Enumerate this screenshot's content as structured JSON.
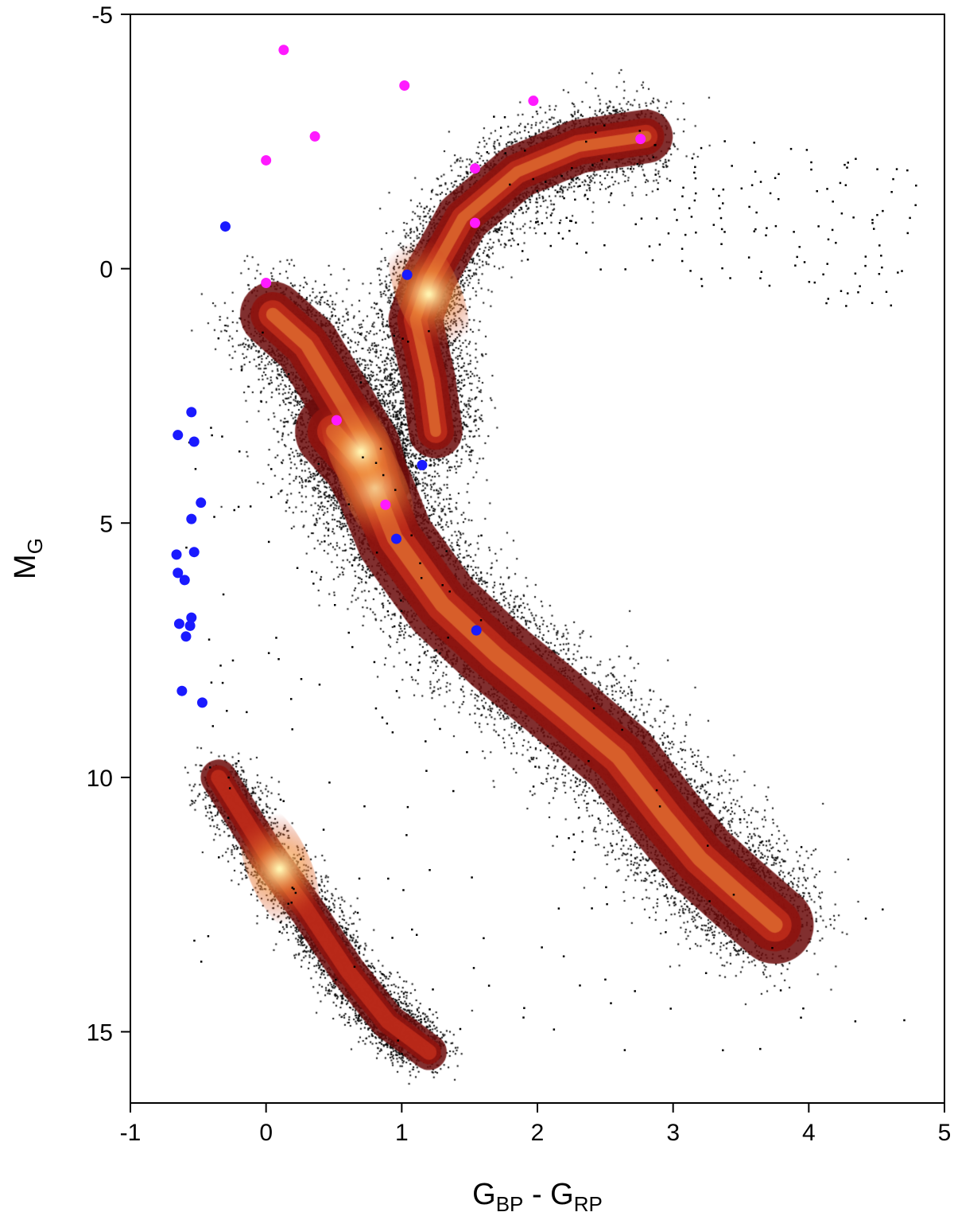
{
  "chart_data": {
    "type": "scatter",
    "title": "",
    "xlabel": {
      "main1": "G",
      "sub1": "BP",
      "mid": " - G",
      "sub2": "RP"
    },
    "ylabel": {
      "main": "M",
      "sub": "G"
    },
    "xlim": [
      -1,
      5
    ],
    "ylim": [
      -5,
      16.4
    ],
    "y_inverted": true,
    "xticks": [
      -1,
      0,
      1,
      2,
      3,
      4,
      5
    ],
    "yticks": [
      -5,
      0,
      5,
      10,
      15
    ],
    "grid": false,
    "legend": "none",
    "colors": {
      "density_low": "#6b0a0a",
      "density_mid": "#c8301c",
      "density_high": "#f08a3a",
      "density_peak": "#fff3b0",
      "outlier": "#000000",
      "magenta": "#ff1aff",
      "blue": "#1a1aff"
    },
    "density_branches": [
      {
        "name": "main-sequence",
        "path": [
          [
            0.5,
            3.2
          ],
          [
            0.7,
            3.8
          ],
          [
            0.8,
            4.3
          ],
          [
            0.95,
            5.3
          ],
          [
            1.3,
            6.6
          ],
          [
            1.7,
            7.6
          ],
          [
            2.2,
            8.7
          ],
          [
            2.6,
            9.6
          ],
          [
            2.95,
            10.8
          ],
          [
            3.2,
            11.6
          ],
          [
            3.45,
            12.2
          ],
          [
            3.75,
            12.9
          ]
        ],
        "width": 0.26,
        "peak": [
          0.8,
          4.3
        ]
      },
      {
        "name": "turnoff-subgiant",
        "path": [
          [
            0.05,
            0.9
          ],
          [
            0.3,
            1.5
          ],
          [
            0.55,
            2.6
          ],
          [
            0.75,
            3.5
          ],
          [
            0.82,
            4.2
          ]
        ],
        "width": 0.22,
        "peak": [
          0.7,
          3.6
        ]
      },
      {
        "name": "giant-branch",
        "path": [
          [
            1.25,
            3.2
          ],
          [
            1.2,
            2.2
          ],
          [
            1.1,
            1.0
          ],
          [
            1.2,
            0.2
          ],
          [
            1.45,
            -1.0
          ],
          [
            1.85,
            -1.9
          ],
          [
            2.3,
            -2.4
          ],
          [
            2.8,
            -2.6
          ]
        ],
        "width": 0.18,
        "peak": [
          1.2,
          0.5
        ]
      },
      {
        "name": "white-dwarf-sequence",
        "path": [
          [
            -0.35,
            10.0
          ],
          [
            0.0,
            11.5
          ],
          [
            0.3,
            12.6
          ],
          [
            0.6,
            13.8
          ],
          [
            0.9,
            14.8
          ],
          [
            1.2,
            15.4
          ]
        ],
        "width": 0.12,
        "peak": [
          0.1,
          11.8
        ]
      }
    ],
    "series": [
      {
        "marker": "magenta",
        "x": [
          0.13,
          1.02,
          1.97,
          0.36,
          2.76,
          0.0,
          1.54,
          1.54,
          0.0,
          0.52,
          0.88
        ],
        "y": [
          -4.3,
          -3.6,
          -3.3,
          -2.6,
          -2.55,
          -2.13,
          -1.97,
          -0.9,
          0.28,
          2.98,
          4.64
        ]
      },
      {
        "marker": "blue",
        "x": [
          -0.3,
          1.04,
          -0.55,
          -0.65,
          -0.53,
          1.15,
          -0.48,
          -0.55,
          0.96,
          -0.66,
          -0.53,
          -0.65,
          -0.6,
          -0.55,
          -0.64,
          -0.56,
          -0.59,
          -0.62,
          -0.47,
          1.55
        ],
        "y": [
          -0.83,
          0.12,
          2.82,
          3.27,
          3.4,
          3.86,
          4.6,
          4.92,
          5.31,
          5.62,
          5.57,
          5.98,
          6.12,
          6.86,
          6.98,
          7.02,
          7.23,
          8.3,
          8.53,
          7.11
        ]
      }
    ]
  }
}
